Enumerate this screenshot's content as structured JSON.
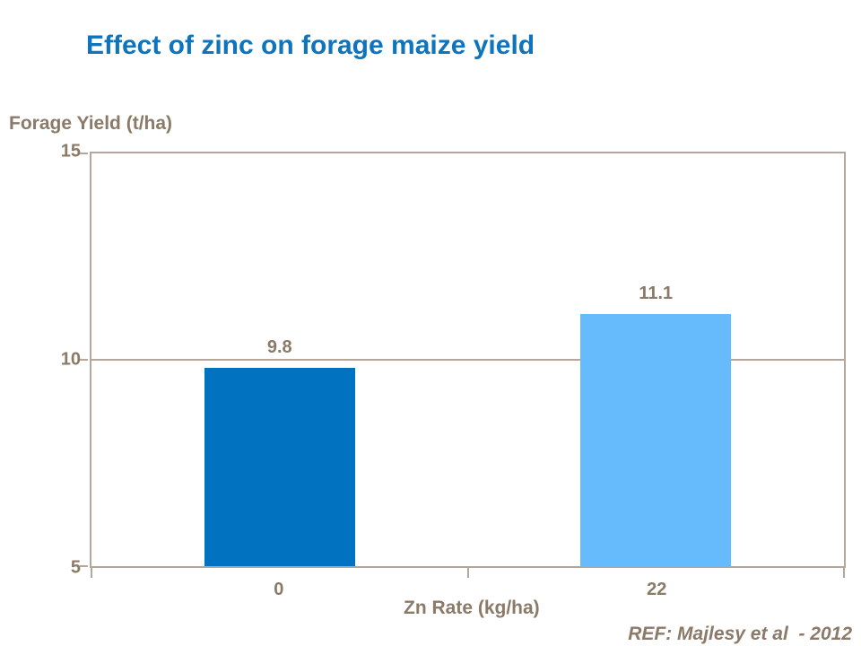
{
  "colors": {
    "title": "#0F74BE",
    "text": "#8A7A67",
    "axis": "#B2A79A"
  },
  "reference": "REF: Majlesy et al  - 2012",
  "chart_data": {
    "type": "bar",
    "title": "Effect of zinc on forage maize yield",
    "categories": [
      "0",
      "22"
    ],
    "values": [
      9.8,
      11.1
    ],
    "value_labels": [
      "9.8",
      "11.1"
    ],
    "xlabel": "Zn Rate (kg/ha)",
    "ylabel": "Forage Yield (t/ha)",
    "ylim": [
      5,
      15
    ],
    "yticks": [
      15,
      10,
      5
    ],
    "grid": "horizontal gridlines at y ticks, plot framed on all four sides",
    "legend": "none",
    "bar_colors": [
      "#0072BF",
      "#66BBFC"
    ]
  }
}
